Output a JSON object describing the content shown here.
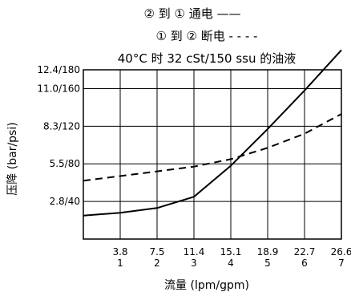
{
  "chart_data": {
    "type": "line",
    "legend": [
      {
        "label": "② 到 ① 通电 ——",
        "series": "2to1"
      },
      {
        "label": "① 到 ② 断电 - - - -",
        "series": "1to2"
      }
    ],
    "title": "40°C 时 32 cSt/150 ssu 的油液",
    "xlabel": "流量 (lpm/gpm)",
    "ylabel": "压降 (bar/psi)",
    "x_ticks_lpm": [
      "3.8",
      "7.5",
      "11.4",
      "15.1",
      "18.9",
      "22.7",
      "26.6"
    ],
    "x_ticks_gpm": [
      "1",
      "2",
      "3",
      "4",
      "5",
      "6",
      "7"
    ],
    "y_ticks": [
      "12.4/180",
      "11.0/160",
      "8.3/120",
      "5.5/80",
      "2.8/40"
    ],
    "xlim": [
      0,
      7
    ],
    "ylim": [
      0,
      180
    ],
    "grid": true,
    "series": [
      {
        "id": "2to1",
        "style": "solid",
        "x": [
          0,
          1,
          2,
          3,
          4,
          5,
          6,
          7
        ],
        "y": [
          25,
          28,
          33,
          45,
          78,
          117,
          158,
          201
        ]
      },
      {
        "id": "1to2",
        "style": "dashed",
        "x": [
          0,
          1,
          2,
          3,
          4,
          5,
          6,
          7
        ],
        "y": [
          62,
          67,
          72,
          77,
          85,
          97,
          112,
          133
        ]
      }
    ]
  }
}
